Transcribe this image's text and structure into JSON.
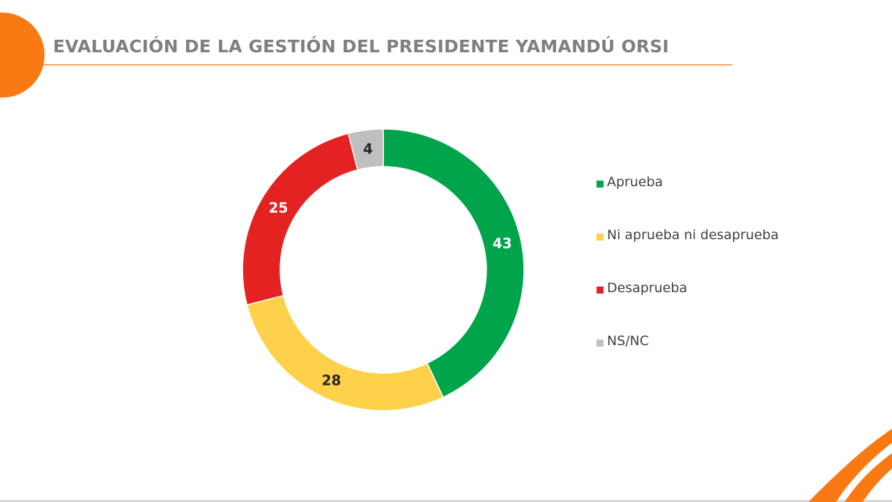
{
  "slide": {
    "title": "EVALUACIÓN DE LA GESTIÓN DEL PRESIDENTE YAMANDÚ ORSI"
  },
  "colors": {
    "accent": "#f97a12",
    "title_text": "#7f7f7f",
    "rule": "#f7a35c"
  },
  "chart_data": {
    "type": "pie",
    "variant": "donut",
    "title": "",
    "legend_position": "right",
    "categories": [
      "Aprueba",
      "Ni aprueba ni desaprueba",
      "Desaprueba",
      "NS/NC"
    ],
    "values": [
      43,
      28,
      25,
      4
    ],
    "labels": [
      "43",
      "28",
      "25",
      "4"
    ],
    "colors": [
      "#00a44a",
      "#fdd24a",
      "#e52222",
      "#bfbfbf"
    ],
    "label_colors": [
      "#ffffff",
      "#262626",
      "#ffffff",
      "#262626"
    ]
  }
}
